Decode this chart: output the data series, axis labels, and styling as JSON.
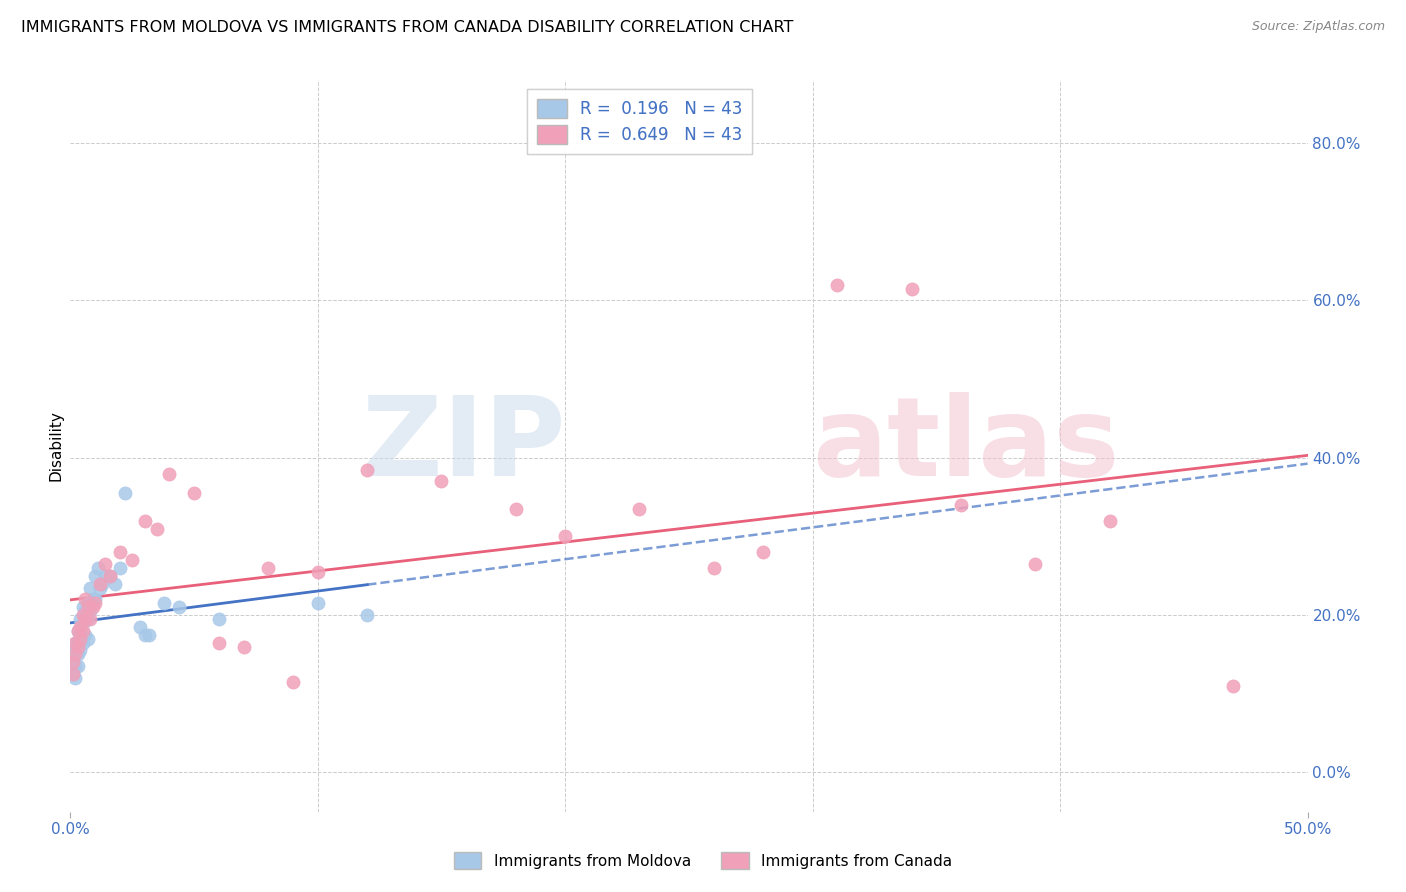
{
  "title": "IMMIGRANTS FROM MOLDOVA VS IMMIGRANTS FROM CANADA DISABILITY CORRELATION CHART",
  "source": "Source: ZipAtlas.com",
  "ylabel": "Disability",
  "xlim": [
    0.0,
    0.5
  ],
  "ylim": [
    -0.05,
    0.88
  ],
  "right_yticks": [
    0.0,
    0.2,
    0.4,
    0.6,
    0.8
  ],
  "right_yticklabels": [
    "0.0%",
    "20.0%",
    "40.0%",
    "60.0%",
    "80.0%"
  ],
  "xticks": [
    0.0,
    0.5
  ],
  "xticklabels": [
    "0.0%",
    "50.0%"
  ],
  "legend_label1": "Immigrants from Moldova",
  "legend_label2": "Immigrants from Canada",
  "color_moldova": "#a8c8e8",
  "color_canada": "#f0a0b8",
  "color_blue": "#4472c4",
  "color_pink": "#e8607a",
  "R_moldova": 0.196,
  "N_moldova": 43,
  "R_canada": 0.649,
  "N_canada": 43,
  "moldova_x": [
    0.001,
    0.001,
    0.001,
    0.002,
    0.002,
    0.002,
    0.002,
    0.003,
    0.003,
    0.003,
    0.003,
    0.004,
    0.004,
    0.004,
    0.005,
    0.005,
    0.005,
    0.006,
    0.006,
    0.007,
    0.007,
    0.007,
    0.008,
    0.008,
    0.009,
    0.01,
    0.01,
    0.011,
    0.012,
    0.013,
    0.014,
    0.016,
    0.018,
    0.02,
    0.022,
    0.028,
    0.03,
    0.032,
    0.038,
    0.044,
    0.06,
    0.1,
    0.12
  ],
  "moldova_y": [
    0.155,
    0.14,
    0.125,
    0.165,
    0.15,
    0.135,
    0.12,
    0.18,
    0.165,
    0.15,
    0.135,
    0.195,
    0.175,
    0.155,
    0.21,
    0.19,
    0.165,
    0.205,
    0.175,
    0.215,
    0.195,
    0.17,
    0.235,
    0.205,
    0.22,
    0.25,
    0.22,
    0.26,
    0.235,
    0.24,
    0.25,
    0.25,
    0.24,
    0.26,
    0.355,
    0.185,
    0.175,
    0.175,
    0.215,
    0.21,
    0.195,
    0.215,
    0.2
  ],
  "canada_x": [
    0.001,
    0.001,
    0.002,
    0.002,
    0.003,
    0.003,
    0.004,
    0.004,
    0.005,
    0.005,
    0.006,
    0.006,
    0.007,
    0.008,
    0.009,
    0.01,
    0.012,
    0.014,
    0.016,
    0.02,
    0.025,
    0.03,
    0.035,
    0.04,
    0.05,
    0.06,
    0.07,
    0.08,
    0.09,
    0.1,
    0.12,
    0.15,
    0.18,
    0.2,
    0.23,
    0.26,
    0.28,
    0.31,
    0.34,
    0.36,
    0.39,
    0.42,
    0.47
  ],
  "canada_y": [
    0.14,
    0.125,
    0.165,
    0.15,
    0.18,
    0.16,
    0.185,
    0.17,
    0.2,
    0.18,
    0.22,
    0.195,
    0.21,
    0.195,
    0.21,
    0.215,
    0.24,
    0.265,
    0.25,
    0.28,
    0.27,
    0.32,
    0.31,
    0.38,
    0.355,
    0.165,
    0.16,
    0.26,
    0.115,
    0.255,
    0.385,
    0.37,
    0.335,
    0.3,
    0.335,
    0.26,
    0.28,
    0.62,
    0.615,
    0.34,
    0.265,
    0.32,
    0.11
  ]
}
